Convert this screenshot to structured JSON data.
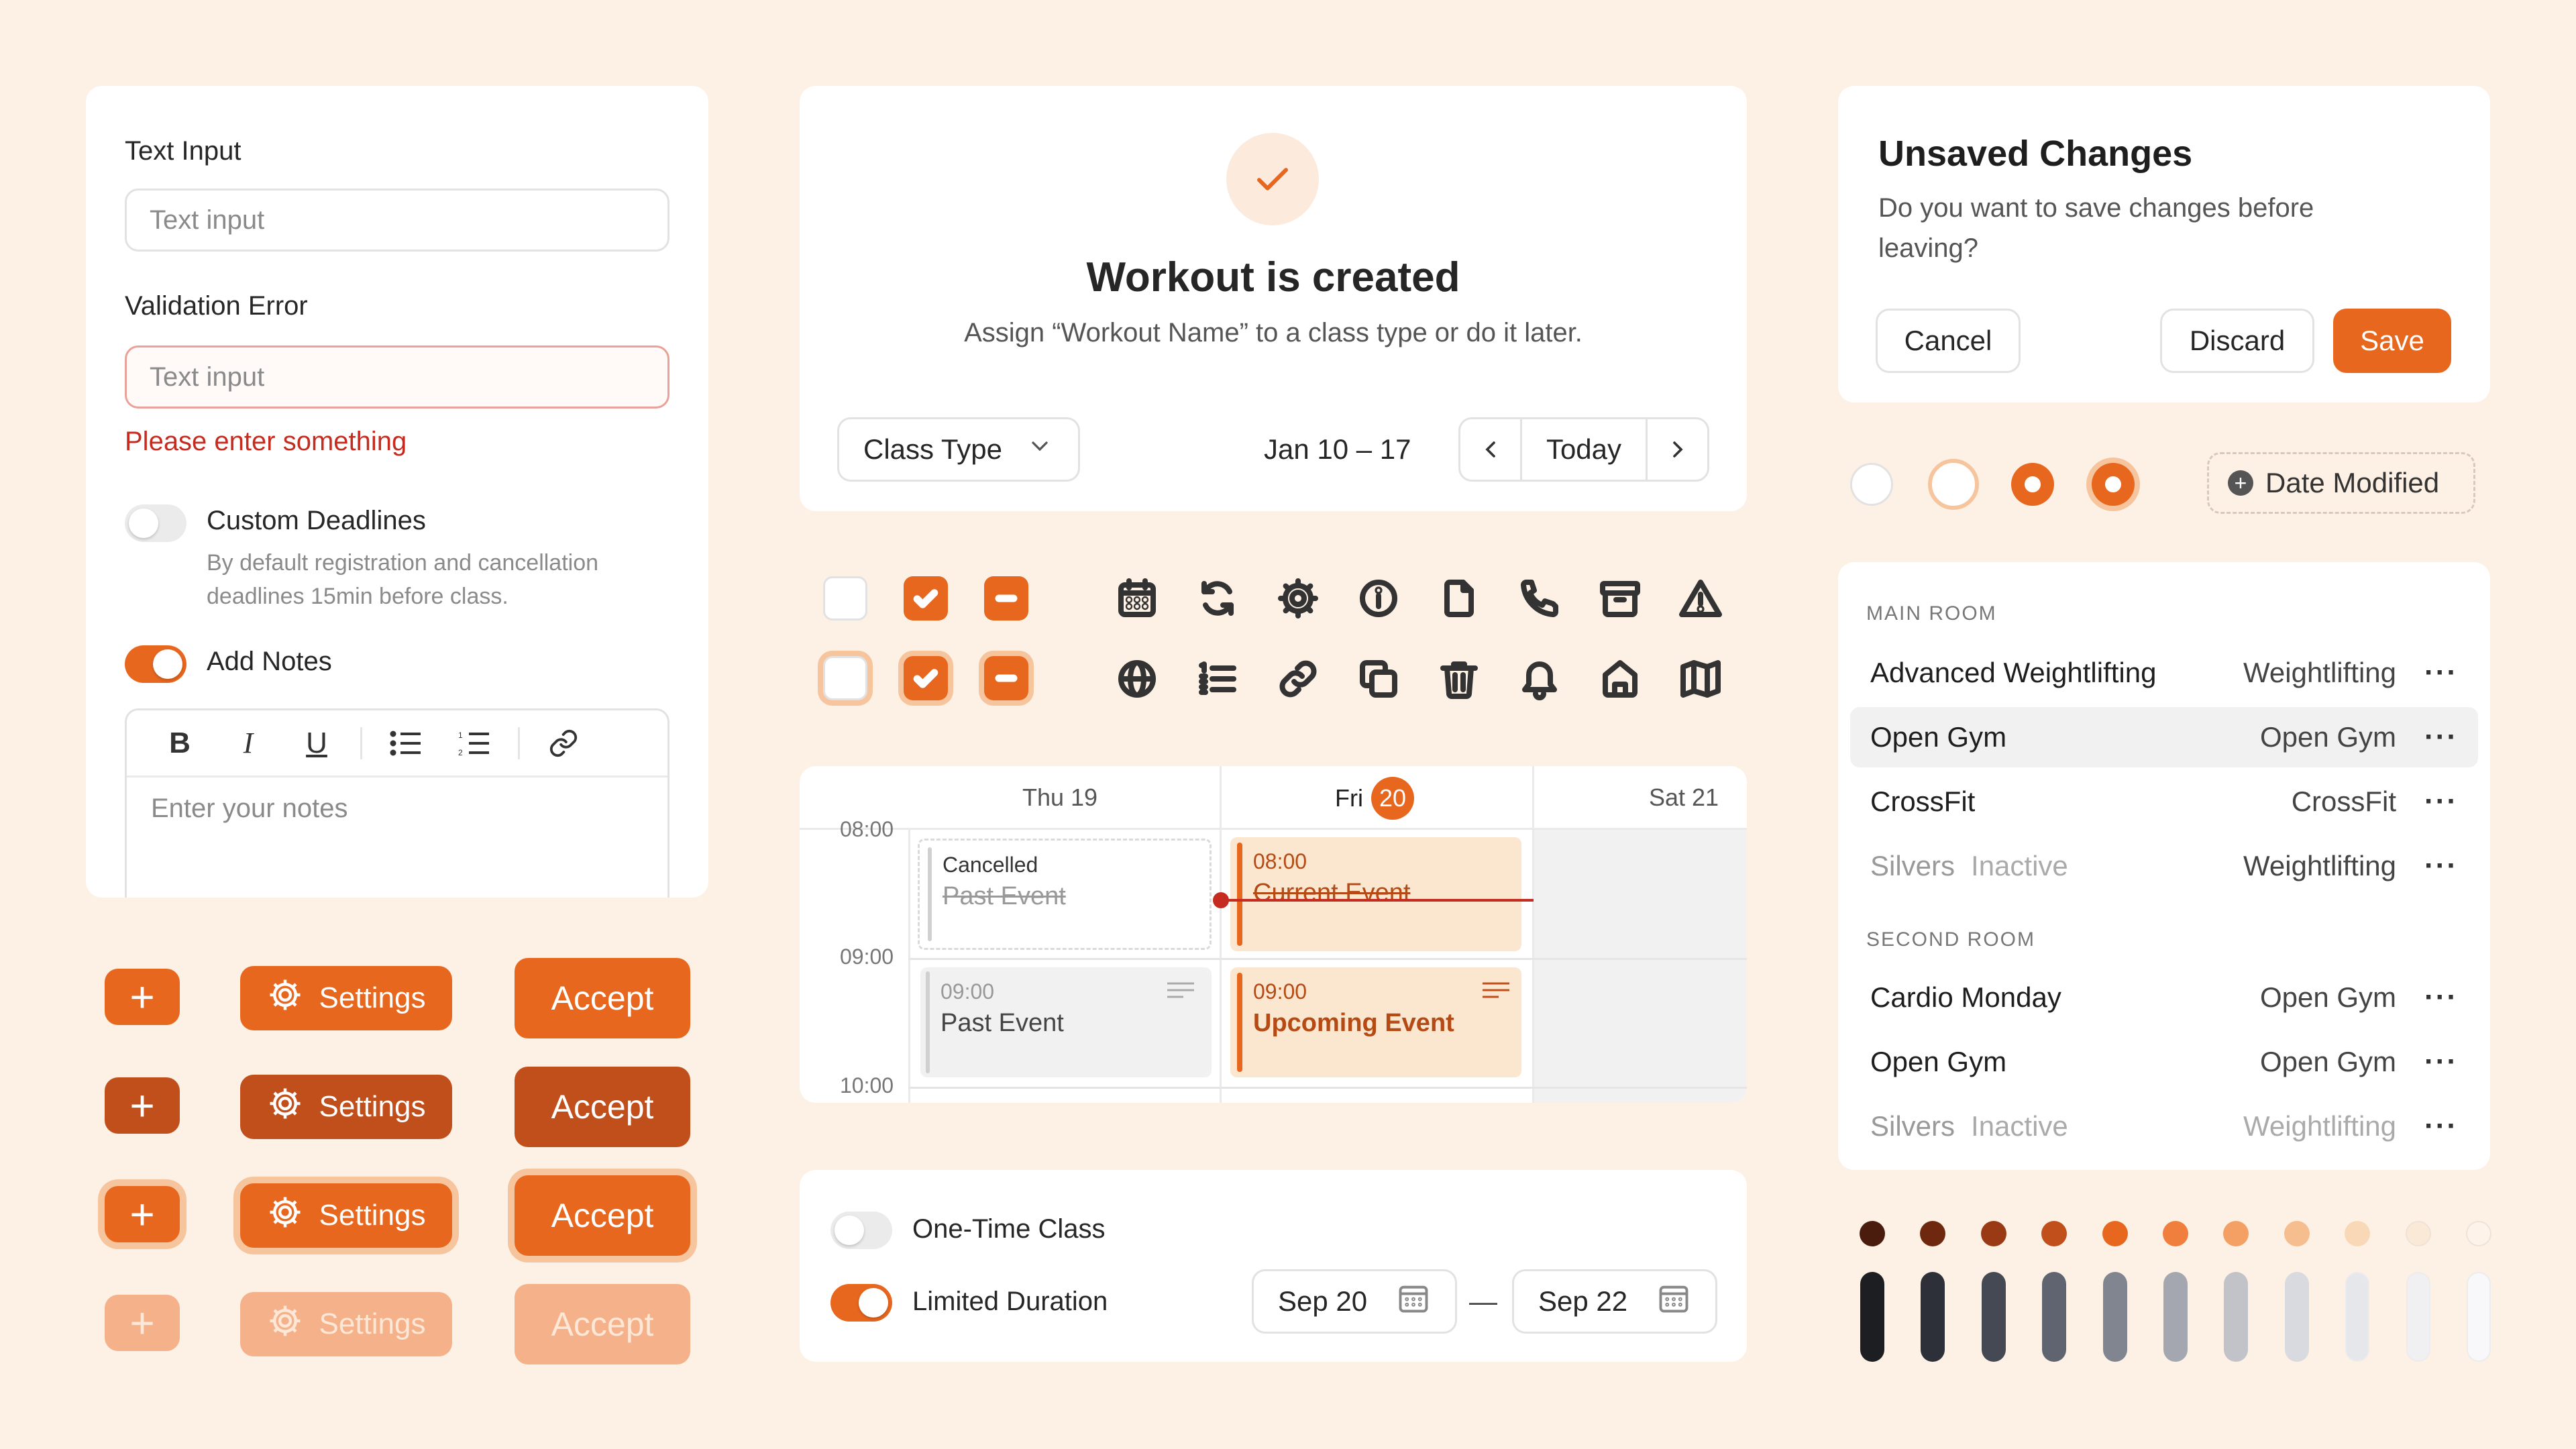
{
  "form": {
    "text_input_label": "Text Input",
    "text_input_placeholder": "Text input",
    "validation_label": "Validation Error",
    "validation_placeholder": "Text input",
    "error_message": "Please enter something",
    "custom_deadlines_title": "Custom Deadlines",
    "custom_deadlines_desc_1": "By default registration and cancellation",
    "custom_deadlines_desc_2": "deadlines 15min before class.",
    "add_notes_title": "Add Notes",
    "notes_placeholder": "Enter your notes"
  },
  "buttons": {
    "plus": "+",
    "settings": "Settings",
    "accept": "Accept"
  },
  "workout": {
    "title": "Workout is created",
    "subtitle": "Assign “Workout Name” to a class type or do it later.",
    "class_type": "Class Type",
    "date_range": "Jan 10 – 17",
    "today": "Today"
  },
  "calendar": {
    "days": [
      "Thu 19",
      "Fri",
      "20",
      "Sat 21"
    ],
    "times": [
      "08:00",
      "09:00",
      "10:00"
    ],
    "events": {
      "cancelled_label": "Cancelled",
      "past_event_1": "Past Event",
      "current_time": "08:00",
      "current_event": "Current Event",
      "past_time": "09:00",
      "past_event_2": "Past Event",
      "upcoming_time": "09:00",
      "upcoming_event": "Upcoming Event"
    }
  },
  "class_options": {
    "one_time": "One-Time Class",
    "limited": "Limited Duration",
    "start_date": "Sep 20",
    "separator": "—",
    "end_date": "Sep 22"
  },
  "dialog": {
    "title": "Unsaved Changes",
    "desc_1": "Do you want to save changes before",
    "desc_2": "leaving?",
    "cancel": "Cancel",
    "discard": "Discard",
    "save": "Save"
  },
  "filter_chip": "Date Modified",
  "rooms": {
    "main_title": "MAIN ROOM",
    "main": [
      {
        "name": "Advanced Weightlifting",
        "type": "Weightlifting"
      },
      {
        "name": "Open Gym",
        "type": "Open Gym"
      },
      {
        "name": "CrossFit",
        "type": "CrossFit"
      },
      {
        "name": "Silvers",
        "status": "Inactive",
        "type": "Weightlifting"
      }
    ],
    "second_title": "SECOND ROOM",
    "second": [
      {
        "name": "Cardio Monday",
        "type": "Open Gym"
      },
      {
        "name": "Open Gym",
        "type": "Open Gym"
      },
      {
        "name": "Silvers",
        "status": "Inactive",
        "type": "Weightlifting"
      }
    ],
    "more": "···"
  },
  "colors": {
    "accent": "#E8671F",
    "orange_scale": [
      "#4A1C0E",
      "#6E2810",
      "#9A3A14",
      "#C14F1B",
      "#E8671F",
      "#F07F3E",
      "#F4A064",
      "#F6BD8E",
      "#F9D8B8",
      "#FBE9D8",
      "#FDF3EA"
    ],
    "gray_scale": [
      "#1D1E22",
      "#2D3038",
      "#454954",
      "#5F6470",
      "#81858F",
      "#A4A7AF",
      "#C1C3C9",
      "#D9DAE0",
      "#E6E7EB",
      "#F0F0F3",
      "#F8F8FA"
    ]
  }
}
